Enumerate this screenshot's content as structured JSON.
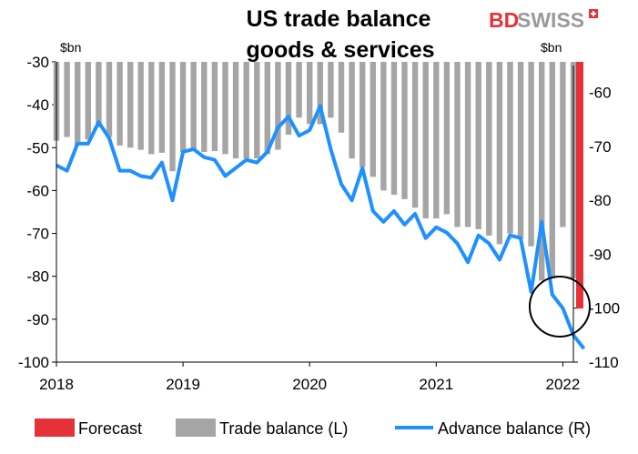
{
  "brand": {
    "part1": "BD",
    "part2": "SWISS",
    "color_primary": "#e53238",
    "color_secondary": "#9a9a9a"
  },
  "chart_data": {
    "type": "bar",
    "title_lines": [
      "US trade balance",
      "goods & services"
    ],
    "left_axis": {
      "unit": "$bn",
      "min": -100,
      "max": -30,
      "ticks": [
        -30,
        -40,
        -50,
        -60,
        -70,
        -80,
        -90,
        -100
      ]
    },
    "right_axis": {
      "unit": "$bn",
      "min": -110,
      "max": -55,
      "ticks": [
        -60,
        -70,
        -80,
        -90,
        -100,
        -110
      ]
    },
    "x_axis": {
      "ticks": [
        "2018",
        "2019",
        "2020",
        "2021",
        "2022"
      ],
      "start": "2018-01",
      "end": "2022-01"
    },
    "grid": false,
    "legend_position": "bottom",
    "series": [
      {
        "name": "Trade balance (L)",
        "type": "bar",
        "axis": "left",
        "color": "#a5a5a5",
        "values": [
          -48.4,
          -47.5,
          -49.5,
          -48.1,
          -45.2,
          -47.5,
          -49.5,
          -50.0,
          -50.5,
          -51.5,
          -51.2,
          -55.5,
          -51.0,
          -50.3,
          -51.0,
          -50.8,
          -51.5,
          -52.5,
          -52.5,
          -52.5,
          -51.5,
          -50.5,
          -47.0,
          -43.0,
          -44.5,
          -44.5,
          -43.0,
          -46.5,
          -52.5,
          -54.5,
          -56.8,
          -60.0,
          -61.0,
          -62.0,
          -64.0,
          -66.5,
          -66.5,
          -65.5,
          -68.5,
          -68.5,
          -69.0,
          -70.5,
          -72.5,
          -70.0,
          -71.2,
          -73.0,
          -81.0,
          -80.5,
          -68.5,
          -80.5
        ]
      },
      {
        "name": "Forecast",
        "type": "bar",
        "axis": "left",
        "color": "#e53238",
        "values": [
          -87.5
        ]
      },
      {
        "name": "Advance balance (R)",
        "type": "line",
        "axis": "right",
        "color": "#1e90ff",
        "values": [
          -73.5,
          -74.5,
          -69.5,
          -69.5,
          -65.5,
          -68.5,
          -74.5,
          -74.5,
          -75.5,
          -75.8,
          -73.0,
          -80.0,
          -71.0,
          -70.5,
          -72.0,
          -72.5,
          -75.5,
          -74.0,
          -72.5,
          -73.0,
          -71.0,
          -66.5,
          -64.5,
          -68.0,
          -67.0,
          -62.5,
          -70.5,
          -77.0,
          -80.0,
          -74.0,
          -82.0,
          -84.0,
          -82.0,
          -84.5,
          -82.5,
          -87.0,
          -85.0,
          -86.0,
          -88.0,
          -91.5,
          -86.5,
          -88.0,
          -91.0,
          -86.5,
          -87.0,
          -97.0,
          -84.0,
          -97.5,
          -100.0,
          -105.0,
          -107.5
        ]
      }
    ],
    "annotation": "circle around latest observations"
  }
}
